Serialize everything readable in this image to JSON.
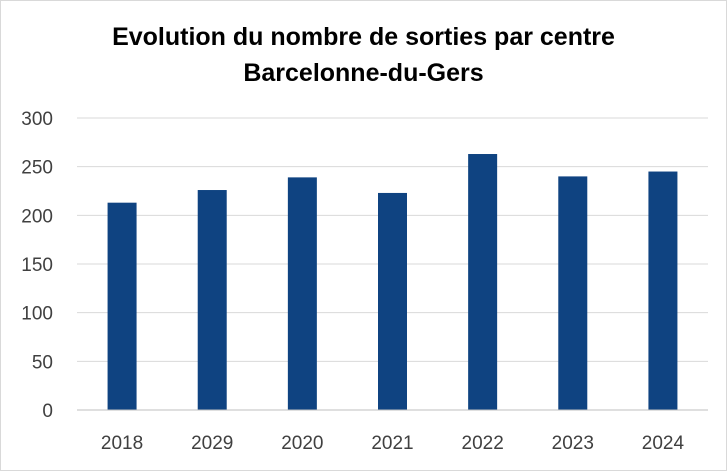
{
  "chart_data": {
    "type": "bar",
    "title": "Evolution du nombre de sorties par centre",
    "subtitle": "Barcelonne-du-Gers",
    "categories": [
      "2018",
      "2029",
      "2020",
      "2021",
      "2022",
      "2023",
      "2024"
    ],
    "values": [
      213,
      226,
      239,
      223,
      263,
      240,
      245
    ],
    "xlabel": "",
    "ylabel": "",
    "ylim": [
      0,
      300
    ],
    "yticks": [
      "0",
      "50",
      "100",
      "150",
      "200",
      "250",
      "300"
    ],
    "grid": true,
    "legend": "none",
    "colors": {
      "bar": "#0f4381",
      "grid": "#d9d9d9",
      "axis": "#bfbfbf",
      "tick_text": "#404040"
    }
  }
}
